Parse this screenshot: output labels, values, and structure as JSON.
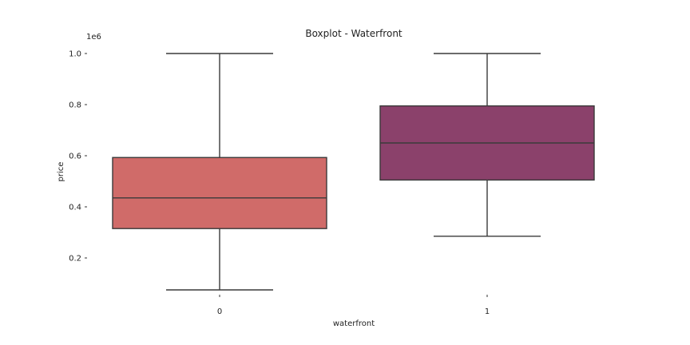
{
  "chart_data": {
    "type": "boxplot",
    "title": "Boxplot - Waterfront",
    "xlabel": "waterfront",
    "ylabel": "price",
    "y_offset_label": "1e6",
    "ylim": [
      0.035,
      1.0
    ],
    "yticks": [
      {
        "value": 0.2,
        "label": "0.2"
      },
      {
        "value": 0.4,
        "label": "0.4"
      },
      {
        "value": 0.6,
        "label": "0.6"
      },
      {
        "value": 0.8,
        "label": "0.8"
      },
      {
        "value": 1.0,
        "label": "1.0"
      }
    ],
    "categories": [
      "0",
      "1"
    ],
    "boxes": [
      {
        "category": "0",
        "whisker_low": 0.075,
        "q1": 0.315,
        "median": 0.435,
        "q3": 0.593,
        "whisker_high": 1.0,
        "color": "#d06b69"
      },
      {
        "category": "1",
        "whisker_low": 0.285,
        "q1": 0.505,
        "median": 0.65,
        "q3": 0.795,
        "whisker_high": 1.0,
        "color": "#8b416b"
      }
    ],
    "grid": false,
    "legend": "none"
  }
}
